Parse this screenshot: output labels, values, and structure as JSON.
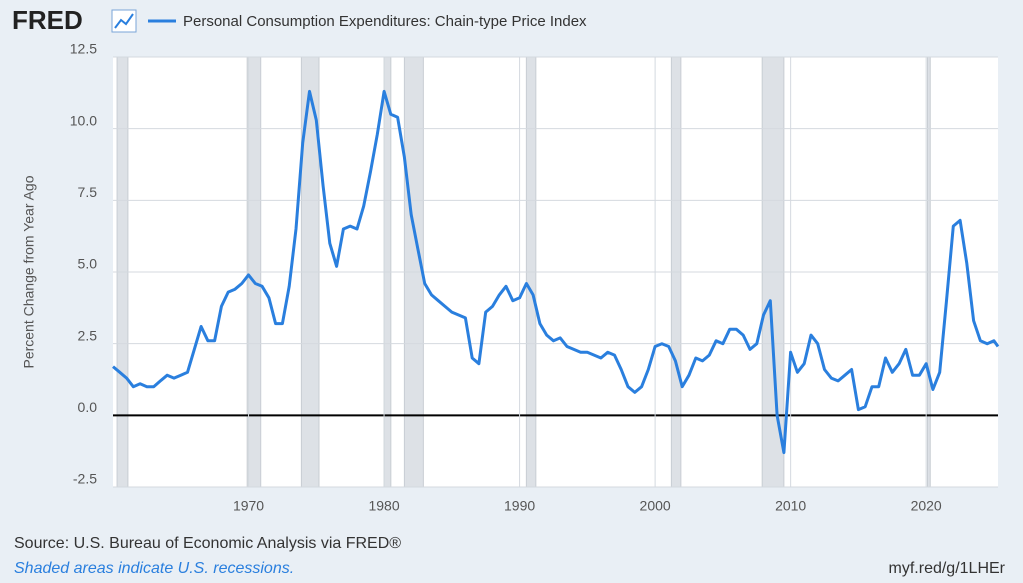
{
  "chart_data": {
    "type": "line",
    "logo": "FRED",
    "ylabel": "Percent Change from Year Ago",
    "source": "Source: U.S. Bureau of Economic Analysis via FRED®",
    "note": "Shaded areas indicate U.S. recessions.",
    "url": "myf.red/g/1LHEr",
    "grid": true,
    "x": [
      1960.0,
      1960.5,
      1961.0,
      1961.5,
      1962.0,
      1962.5,
      1963.0,
      1963.5,
      1964.0,
      1964.5,
      1965.0,
      1965.5,
      1966.0,
      1966.5,
      1967.0,
      1967.5,
      1968.0,
      1968.5,
      1969.0,
      1969.5,
      1970.0,
      1970.5,
      1971.0,
      1971.5,
      1972.0,
      1972.5,
      1973.0,
      1973.5,
      1974.0,
      1974.5,
      1975.0,
      1975.5,
      1976.0,
      1976.5,
      1977.0,
      1977.5,
      1978.0,
      1978.5,
      1979.0,
      1979.5,
      1980.0,
      1980.5,
      1981.0,
      1981.5,
      1982.0,
      1982.5,
      1983.0,
      1983.5,
      1984.0,
      1984.5,
      1985.0,
      1985.5,
      1986.0,
      1986.5,
      1987.0,
      1987.5,
      1988.0,
      1988.5,
      1989.0,
      1989.5,
      1990.0,
      1990.5,
      1991.0,
      1991.5,
      1992.0,
      1992.5,
      1993.0,
      1993.5,
      1994.0,
      1994.5,
      1995.0,
      1995.5,
      1996.0,
      1996.5,
      1997.0,
      1997.5,
      1998.0,
      1998.5,
      1999.0,
      1999.5,
      2000.0,
      2000.5,
      2001.0,
      2001.5,
      2002.0,
      2002.5,
      2003.0,
      2003.5,
      2004.0,
      2004.5,
      2005.0,
      2005.5,
      2006.0,
      2006.5,
      2007.0,
      2007.5,
      2008.0,
      2008.5,
      2009.0,
      2009.5,
      2010.0,
      2010.5,
      2011.0,
      2011.5,
      2012.0,
      2012.5,
      2013.0,
      2013.5,
      2014.0,
      2014.5,
      2015.0,
      2015.5,
      2016.0,
      2016.5,
      2017.0,
      2017.5,
      2018.0,
      2018.5,
      2019.0,
      2019.5,
      2020.0,
      2020.5,
      2021.0,
      2021.5,
      2022.0,
      2022.5,
      2023.0,
      2023.5,
      2024.0,
      2024.5,
      2025.0,
      2025.3
    ],
    "series": [
      {
        "name": "Personal Consumption Expenditures: Chain-type Price Index",
        "color": "#2a7fde",
        "values": [
          1.7,
          1.5,
          1.3,
          1.0,
          1.1,
          1.0,
          1.0,
          1.2,
          1.4,
          1.3,
          1.4,
          1.5,
          2.3,
          3.1,
          2.6,
          2.6,
          3.8,
          4.3,
          4.4,
          4.6,
          4.9,
          4.6,
          4.5,
          4.1,
          3.2,
          3.2,
          4.5,
          6.5,
          9.5,
          11.3,
          10.3,
          8.0,
          6.0,
          5.2,
          6.5,
          6.6,
          6.5,
          7.3,
          8.5,
          9.8,
          11.3,
          10.5,
          10.4,
          9.0,
          7.0,
          5.8,
          4.6,
          4.2,
          4.0,
          3.8,
          3.6,
          3.5,
          3.4,
          2.0,
          1.8,
          3.6,
          3.8,
          4.2,
          4.5,
          4.0,
          4.1,
          4.6,
          4.2,
          3.2,
          2.8,
          2.6,
          2.7,
          2.4,
          2.3,
          2.2,
          2.2,
          2.1,
          2.0,
          2.2,
          2.1,
          1.6,
          1.0,
          0.8,
          1.0,
          1.6,
          2.4,
          2.5,
          2.4,
          1.9,
          1.0,
          1.4,
          2.0,
          1.9,
          2.1,
          2.6,
          2.5,
          3.0,
          3.0,
          2.8,
          2.3,
          2.5,
          3.5,
          4.0,
          0.0,
          -1.3,
          2.2,
          1.5,
          1.8,
          2.8,
          2.5,
          1.6,
          1.3,
          1.2,
          1.4,
          1.6,
          0.2,
          0.3,
          1.0,
          1.0,
          2.0,
          1.5,
          1.8,
          2.3,
          1.4,
          1.4,
          1.8,
          0.9,
          1.5,
          4.0,
          6.6,
          6.8,
          5.3,
          3.3,
          2.6,
          2.5,
          2.6,
          2.4
        ]
      }
    ],
    "recessions": [
      [
        1960.3,
        1961.1
      ],
      [
        1969.9,
        1970.9
      ],
      [
        1973.9,
        1975.2
      ],
      [
        1980.0,
        1980.5
      ],
      [
        1981.5,
        1982.9
      ],
      [
        1990.5,
        1991.2
      ],
      [
        2001.2,
        2001.9
      ],
      [
        2007.9,
        2009.5
      ],
      [
        2020.1,
        2020.3
      ]
    ],
    "xlim": [
      1960,
      2025.3
    ],
    "xticks": [
      1970,
      1980,
      1990,
      2000,
      2010,
      2020
    ],
    "ylim": [
      -2.5,
      12.5
    ],
    "yticks": [
      -2.5,
      {
        "value": 0,
        "label": "0.0"
      },
      2.5,
      {
        "value": 5,
        "label": "5.0"
      },
      7.5,
      {
        "value": 10,
        "label": "10.0"
      },
      12.5
    ]
  }
}
